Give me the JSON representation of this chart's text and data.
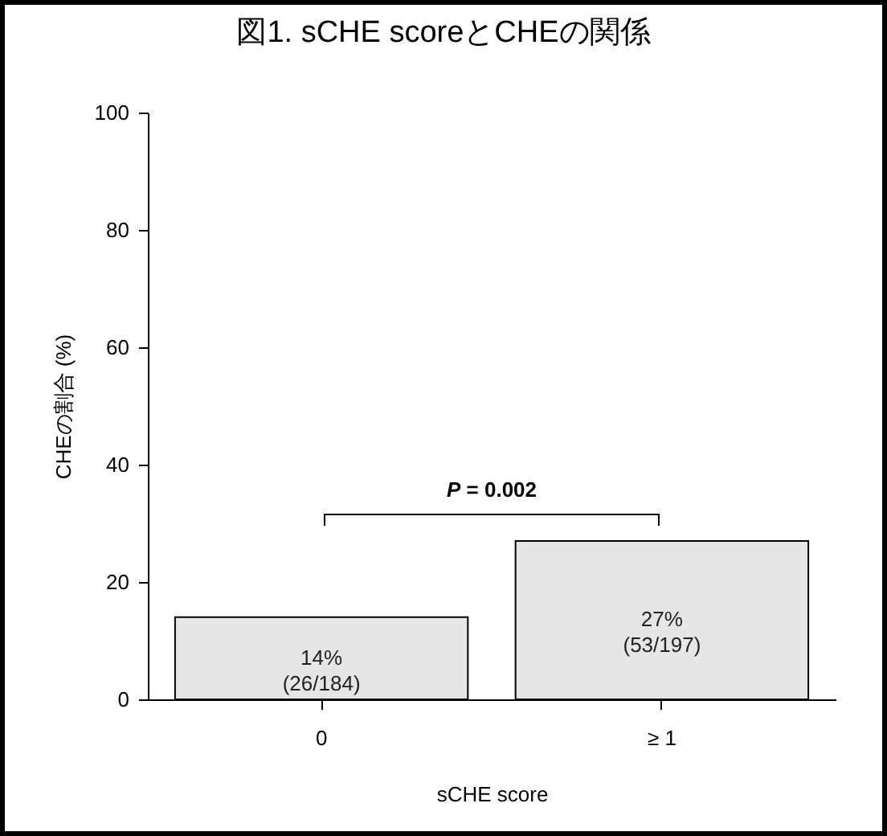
{
  "chart_data": {
    "type": "bar",
    "title": "図1. sCHE scoreとCHEの関係",
    "xlabel": "sCHE score",
    "ylabel": "CHEの割合 (%)",
    "categories": [
      "0",
      "≥ 1"
    ],
    "values": [
      14,
      27
    ],
    "value_labels": [
      "14%\n(26/184)",
      "27%\n(53/197)"
    ],
    "color": "#e6e6e6",
    "ylim": [
      0,
      100
    ],
    "yticks": [
      0,
      20,
      40,
      60,
      80,
      100
    ],
    "annotations": [
      "P = 0.002"
    ]
  }
}
